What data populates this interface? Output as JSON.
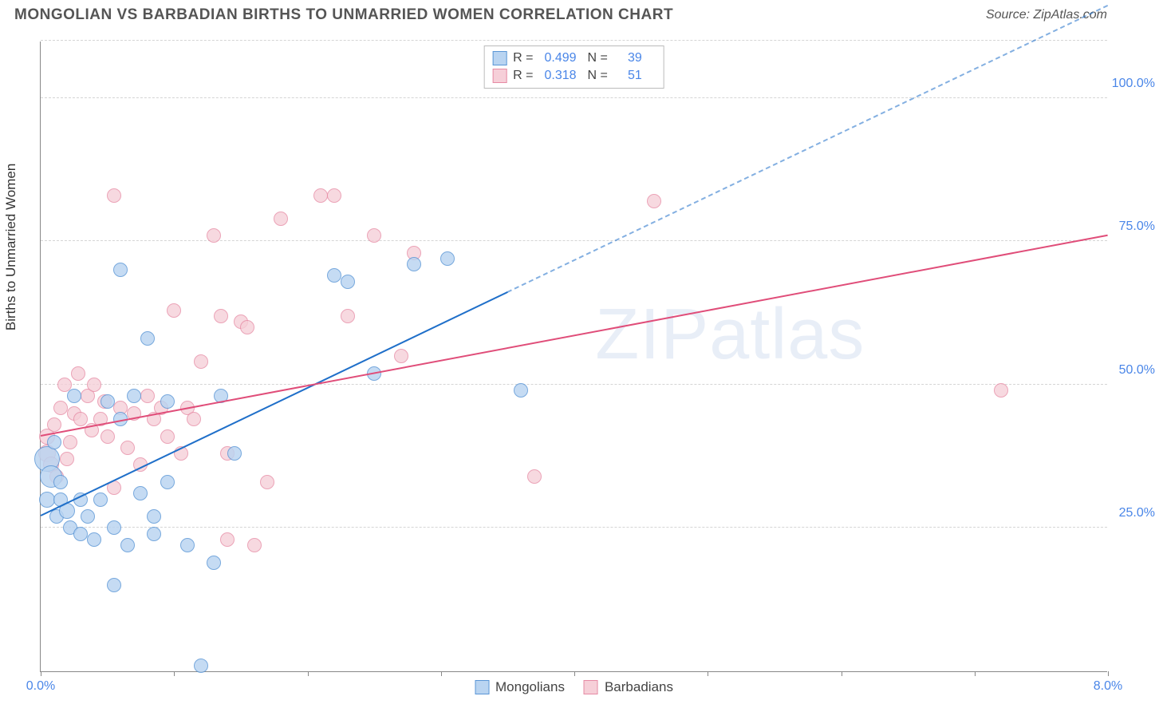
{
  "header": {
    "title": "MONGOLIAN VS BARBADIAN BIRTHS TO UNMARRIED WOMEN CORRELATION CHART",
    "source": "Source: ZipAtlas.com"
  },
  "chart": {
    "type": "scatter",
    "y_axis_title": "Births to Unmarried Women",
    "x_range": [
      0.0,
      8.0
    ],
    "y_range": [
      0.0,
      110.0
    ],
    "x_ticks": [
      0.0,
      1.0,
      2.0,
      3.0,
      4.0,
      5.0,
      6.0,
      7.0,
      8.0
    ],
    "x_tick_labels": {
      "0": "0.0%",
      "8": "8.0%"
    },
    "y_gridlines": [
      25.0,
      50.0,
      75.0,
      100.0,
      110.0
    ],
    "y_tick_labels": {
      "25": "25.0%",
      "50": "50.0%",
      "75": "75.0%",
      "100": "100.0%"
    },
    "x_label_color": "#4a86e8",
    "y_label_color": "#4a86e8",
    "grid_color": "#d5d5d5",
    "axis_color": "#888888",
    "background": "#ffffff",
    "series": [
      {
        "name": "Mongolians",
        "fill": "#b9d4f1",
        "stroke": "#5a96d6",
        "opacity": 0.82,
        "r_value": "0.499",
        "n_value": "39",
        "trend": {
          "color": "#1f6fc9",
          "width": 2,
          "x1": 0.0,
          "y1": 27.0,
          "x2_solid": 3.5,
          "y2_solid": 66.0,
          "x2_dash": 8.0,
          "y2_dash": 116.0
        },
        "points": [
          {
            "x": 0.05,
            "y": 30,
            "r": 10
          },
          {
            "x": 0.05,
            "y": 37,
            "r": 16
          },
          {
            "x": 0.08,
            "y": 34,
            "r": 14
          },
          {
            "x": 0.1,
            "y": 40,
            "r": 9
          },
          {
            "x": 0.12,
            "y": 27,
            "r": 9
          },
          {
            "x": 0.15,
            "y": 33,
            "r": 9
          },
          {
            "x": 0.15,
            "y": 30,
            "r": 9
          },
          {
            "x": 0.2,
            "y": 28,
            "r": 10
          },
          {
            "x": 0.22,
            "y": 25,
            "r": 9
          },
          {
            "x": 0.25,
            "y": 48,
            "r": 9
          },
          {
            "x": 0.3,
            "y": 24,
            "r": 9
          },
          {
            "x": 0.3,
            "y": 30,
            "r": 9
          },
          {
            "x": 0.35,
            "y": 27,
            "r": 9
          },
          {
            "x": 0.4,
            "y": 23,
            "r": 9
          },
          {
            "x": 0.45,
            "y": 30,
            "r": 9
          },
          {
            "x": 0.5,
            "y": 47,
            "r": 9
          },
          {
            "x": 0.55,
            "y": 25,
            "r": 9
          },
          {
            "x": 0.6,
            "y": 70,
            "r": 9
          },
          {
            "x": 0.6,
            "y": 44,
            "r": 9
          },
          {
            "x": 0.65,
            "y": 22,
            "r": 9
          },
          {
            "x": 0.7,
            "y": 48,
            "r": 9
          },
          {
            "x": 0.75,
            "y": 31,
            "r": 9
          },
          {
            "x": 0.8,
            "y": 58,
            "r": 9
          },
          {
            "x": 0.85,
            "y": 24,
            "r": 9
          },
          {
            "x": 0.85,
            "y": 27,
            "r": 9
          },
          {
            "x": 0.95,
            "y": 47,
            "r": 9
          },
          {
            "x": 0.95,
            "y": 33,
            "r": 9
          },
          {
            "x": 0.55,
            "y": 15,
            "r": 9
          },
          {
            "x": 1.1,
            "y": 22,
            "r": 9
          },
          {
            "x": 1.2,
            "y": 1,
            "r": 9
          },
          {
            "x": 1.3,
            "y": 19,
            "r": 9
          },
          {
            "x": 1.35,
            "y": 48,
            "r": 9
          },
          {
            "x": 1.45,
            "y": 38,
            "r": 9
          },
          {
            "x": 2.2,
            "y": 69,
            "r": 9
          },
          {
            "x": 2.3,
            "y": 68,
            "r": 9
          },
          {
            "x": 2.5,
            "y": 52,
            "r": 9
          },
          {
            "x": 2.8,
            "y": 71,
            "r": 9
          },
          {
            "x": 3.05,
            "y": 72,
            "r": 9
          },
          {
            "x": 3.6,
            "y": 49,
            "r": 9
          }
        ]
      },
      {
        "name": "Barbadians",
        "fill": "#f6cfd8",
        "stroke": "#e68aa4",
        "opacity": 0.78,
        "r_value": "0.318",
        "n_value": "51",
        "trend": {
          "color": "#e04d79",
          "width": 2,
          "x1": 0.0,
          "y1": 41.0,
          "x2_solid": 8.0,
          "y2_solid": 76.0
        },
        "points": [
          {
            "x": 0.05,
            "y": 38,
            "r": 11
          },
          {
            "x": 0.05,
            "y": 41,
            "r": 10
          },
          {
            "x": 0.08,
            "y": 36,
            "r": 10
          },
          {
            "x": 0.1,
            "y": 43,
            "r": 9
          },
          {
            "x": 0.12,
            "y": 34,
            "r": 9
          },
          {
            "x": 0.15,
            "y": 46,
            "r": 9
          },
          {
            "x": 0.18,
            "y": 50,
            "r": 9
          },
          {
            "x": 0.2,
            "y": 37,
            "r": 9
          },
          {
            "x": 0.22,
            "y": 40,
            "r": 9
          },
          {
            "x": 0.25,
            "y": 45,
            "r": 9
          },
          {
            "x": 0.28,
            "y": 52,
            "r": 9
          },
          {
            "x": 0.3,
            "y": 44,
            "r": 9
          },
          {
            "x": 0.35,
            "y": 48,
            "r": 9
          },
          {
            "x": 0.38,
            "y": 42,
            "r": 9
          },
          {
            "x": 0.4,
            "y": 50,
            "r": 9
          },
          {
            "x": 0.45,
            "y": 44,
            "r": 9
          },
          {
            "x": 0.48,
            "y": 47,
            "r": 9
          },
          {
            "x": 0.5,
            "y": 41,
            "r": 9
          },
          {
            "x": 0.55,
            "y": 83,
            "r": 9
          },
          {
            "x": 0.55,
            "y": 32,
            "r": 9
          },
          {
            "x": 0.6,
            "y": 46,
            "r": 9
          },
          {
            "x": 0.65,
            "y": 39,
            "r": 9
          },
          {
            "x": 0.7,
            "y": 45,
            "r": 9
          },
          {
            "x": 0.75,
            "y": 36,
            "r": 9
          },
          {
            "x": 0.8,
            "y": 48,
            "r": 9
          },
          {
            "x": 0.85,
            "y": 44,
            "r": 9
          },
          {
            "x": 0.9,
            "y": 46,
            "r": 9
          },
          {
            "x": 0.95,
            "y": 41,
            "r": 9
          },
          {
            "x": 1.0,
            "y": 63,
            "r": 9
          },
          {
            "x": 1.05,
            "y": 38,
            "r": 9
          },
          {
            "x": 1.1,
            "y": 46,
            "r": 9
          },
          {
            "x": 1.15,
            "y": 44,
            "r": 9
          },
          {
            "x": 1.2,
            "y": 54,
            "r": 9
          },
          {
            "x": 1.3,
            "y": 76,
            "r": 9
          },
          {
            "x": 1.35,
            "y": 62,
            "r": 9
          },
          {
            "x": 1.4,
            "y": 23,
            "r": 9
          },
          {
            "x": 1.4,
            "y": 38,
            "r": 9
          },
          {
            "x": 1.5,
            "y": 61,
            "r": 9
          },
          {
            "x": 1.55,
            "y": 60,
            "r": 9
          },
          {
            "x": 1.6,
            "y": 22,
            "r": 9
          },
          {
            "x": 1.7,
            "y": 33,
            "r": 9
          },
          {
            "x": 1.8,
            "y": 79,
            "r": 9
          },
          {
            "x": 2.1,
            "y": 83,
            "r": 9
          },
          {
            "x": 2.2,
            "y": 83,
            "r": 9
          },
          {
            "x": 2.3,
            "y": 62,
            "r": 9
          },
          {
            "x": 2.5,
            "y": 76,
            "r": 9
          },
          {
            "x": 2.7,
            "y": 55,
            "r": 9
          },
          {
            "x": 2.8,
            "y": 73,
            "r": 9
          },
          {
            "x": 3.7,
            "y": 34,
            "r": 9
          },
          {
            "x": 4.6,
            "y": 82,
            "r": 9
          },
          {
            "x": 7.2,
            "y": 49,
            "r": 9
          }
        ]
      }
    ],
    "legend_bottom": [
      {
        "label": "Mongolians",
        "fill": "#b9d4f1",
        "stroke": "#5a96d6"
      },
      {
        "label": "Barbadians",
        "fill": "#f6cfd8",
        "stroke": "#e68aa4"
      }
    ],
    "legend_top_labels": {
      "r": "R =",
      "n": "N ="
    },
    "stat_value_color": "#4a86e8",
    "watermark": {
      "text_a": "ZIP",
      "text_b": "atlas",
      "color": "#e8eef7"
    }
  }
}
